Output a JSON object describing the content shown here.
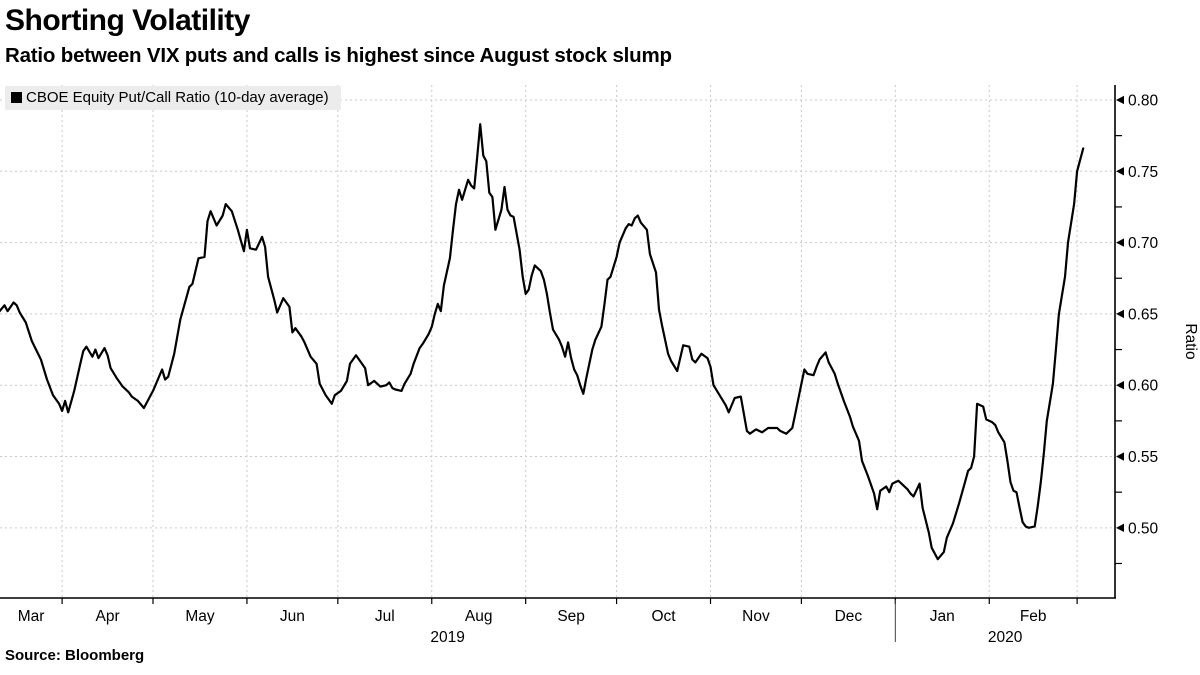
{
  "header": {
    "title": "Shorting Volatility",
    "subtitle": "Ratio between VIX puts and calls is highest since August stock slump"
  },
  "legend": {
    "label": "CBOE Equity Put/Call Ratio (10-day average)"
  },
  "footer": {
    "source": "Source: Bloomberg"
  },
  "colors": {
    "line": "#000000",
    "grid": "#c9c9c9",
    "legend_bg": "#ececec",
    "axis": "#000000",
    "background": "#ffffff"
  },
  "chart_data": {
    "type": "line",
    "title": "Shorting Volatility",
    "subtitle": "Ratio between VIX puts and calls is highest since August stock slump",
    "series_name": "CBOE Equity Put/Call Ratio (10-day average)",
    "ylabel": "Ratio",
    "grid": true,
    "legend_position": "top-left",
    "x_unit": "days since 2019-03-01",
    "x_domain": [
      10.5,
      378.5
    ],
    "ylim": [
      0.4508,
      0.8105
    ],
    "y_ticks_major": [
      0.5,
      0.55,
      0.6,
      0.65,
      0.7,
      0.75,
      0.8
    ],
    "y_ticks_minor": [
      0.475,
      0.525,
      0.575,
      0.625,
      0.675,
      0.725,
      0.775
    ],
    "y_tick_format": 2,
    "month_boundaries_days": [
      31,
      61,
      92,
      122,
      153,
      184,
      214,
      245,
      275,
      306,
      337,
      366
    ],
    "month_labels": [
      "Mar",
      "Apr",
      "May",
      "Jun",
      "Jul",
      "Aug",
      "Sep",
      "Oct",
      "Nov",
      "Dec",
      "Jan",
      "Feb"
    ],
    "year_divider_day": 306,
    "year_labels": [
      {
        "text": "2019",
        "from_day": 10.5,
        "to_day": 306
      },
      {
        "text": "2020",
        "from_day": 306,
        "to_day": 378.5
      }
    ],
    "points": [
      [
        10,
        0.651
      ],
      [
        12,
        0.656
      ],
      [
        13,
        0.652
      ],
      [
        15,
        0.658
      ],
      [
        16,
        0.656
      ],
      [
        17,
        0.651
      ],
      [
        19,
        0.644
      ],
      [
        21,
        0.631
      ],
      [
        24,
        0.618
      ],
      [
        26,
        0.604
      ],
      [
        28,
        0.593
      ],
      [
        30,
        0.587
      ],
      [
        31,
        0.582
      ],
      [
        32,
        0.589
      ],
      [
        33,
        0.581
      ],
      [
        35,
        0.596
      ],
      [
        37,
        0.615
      ],
      [
        38,
        0.624
      ],
      [
        39,
        0.627
      ],
      [
        41,
        0.62
      ],
      [
        42,
        0.625
      ],
      [
        43,
        0.619
      ],
      [
        45,
        0.626
      ],
      [
        46,
        0.621
      ],
      [
        47,
        0.612
      ],
      [
        49,
        0.605
      ],
      [
        51,
        0.599
      ],
      [
        53,
        0.595
      ],
      [
        54,
        0.592
      ],
      [
        56,
        0.589
      ],
      [
        58,
        0.584
      ],
      [
        61,
        0.596
      ],
      [
        64,
        0.611
      ],
      [
        65,
        0.604
      ],
      [
        66,
        0.606
      ],
      [
        68,
        0.622
      ],
      [
        70,
        0.646
      ],
      [
        73,
        0.669
      ],
      [
        74,
        0.671
      ],
      [
        76,
        0.689
      ],
      [
        78,
        0.69
      ],
      [
        79,
        0.715
      ],
      [
        80,
        0.722
      ],
      [
        82,
        0.712
      ],
      [
        84,
        0.719
      ],
      [
        85,
        0.727
      ],
      [
        87,
        0.722
      ],
      [
        89,
        0.709
      ],
      [
        91,
        0.694
      ],
      [
        92,
        0.709
      ],
      [
        93,
        0.696
      ],
      [
        95,
        0.695
      ],
      [
        97,
        0.704
      ],
      [
        98,
        0.697
      ],
      [
        99,
        0.676
      ],
      [
        101,
        0.66
      ],
      [
        102,
        0.651
      ],
      [
        104,
        0.661
      ],
      [
        106,
        0.655
      ],
      [
        107,
        0.637
      ],
      [
        108,
        0.64
      ],
      [
        110,
        0.634
      ],
      [
        111,
        0.63
      ],
      [
        113,
        0.62
      ],
      [
        115,
        0.615
      ],
      [
        116,
        0.601
      ],
      [
        118,
        0.593
      ],
      [
        120,
        0.587
      ],
      [
        121,
        0.593
      ],
      [
        123,
        0.596
      ],
      [
        125,
        0.603
      ],
      [
        126,
        0.615
      ],
      [
        128,
        0.621
      ],
      [
        131,
        0.612
      ],
      [
        132,
        0.6
      ],
      [
        134,
        0.603
      ],
      [
        136,
        0.599
      ],
      [
        138,
        0.6
      ],
      [
        139,
        0.602
      ],
      [
        140,
        0.598
      ],
      [
        141,
        0.597
      ],
      [
        143,
        0.596
      ],
      [
        144,
        0.601
      ],
      [
        146,
        0.608
      ],
      [
        147,
        0.615
      ],
      [
        149,
        0.626
      ],
      [
        150,
        0.629
      ],
      [
        152,
        0.636
      ],
      [
        153,
        0.641
      ],
      [
        154,
        0.65
      ],
      [
        155,
        0.657
      ],
      [
        156,
        0.652
      ],
      [
        157,
        0.67
      ],
      [
        159,
        0.689
      ],
      [
        160,
        0.709
      ],
      [
        161,
        0.727
      ],
      [
        162,
        0.737
      ],
      [
        163,
        0.73
      ],
      [
        165,
        0.744
      ],
      [
        166,
        0.74
      ],
      [
        167,
        0.738
      ],
      [
        168,
        0.76
      ],
      [
        169,
        0.783
      ],
      [
        170,
        0.761
      ],
      [
        171,
        0.757
      ],
      [
        172,
        0.735
      ],
      [
        173,
        0.732
      ],
      [
        174,
        0.709
      ],
      [
        176,
        0.723
      ],
      [
        177,
        0.739
      ],
      [
        178,
        0.723
      ],
      [
        179,
        0.719
      ],
      [
        180,
        0.718
      ],
      [
        182,
        0.695
      ],
      [
        183,
        0.676
      ],
      [
        184,
        0.664
      ],
      [
        185,
        0.667
      ],
      [
        186,
        0.677
      ],
      [
        187,
        0.684
      ],
      [
        188,
        0.682
      ],
      [
        189,
        0.68
      ],
      [
        190,
        0.674
      ],
      [
        191,
        0.664
      ],
      [
        192,
        0.651
      ],
      [
        193,
        0.639
      ],
      [
        195,
        0.632
      ],
      [
        196,
        0.627
      ],
      [
        197,
        0.62
      ],
      [
        198,
        0.63
      ],
      [
        199,
        0.619
      ],
      [
        200,
        0.611
      ],
      [
        201,
        0.607
      ],
      [
        202,
        0.6
      ],
      [
        203,
        0.594
      ],
      [
        204,
        0.605
      ],
      [
        205,
        0.615
      ],
      [
        206,
        0.625
      ],
      [
        207,
        0.632
      ],
      [
        209,
        0.641
      ],
      [
        210,
        0.657
      ],
      [
        211,
        0.674
      ],
      [
        212,
        0.676
      ],
      [
        214,
        0.69
      ],
      [
        215,
        0.7
      ],
      [
        217,
        0.71
      ],
      [
        218,
        0.713
      ],
      [
        219,
        0.712
      ],
      [
        220,
        0.717
      ],
      [
        221,
        0.719
      ],
      [
        222,
        0.714
      ],
      [
        224,
        0.709
      ],
      [
        225,
        0.692
      ],
      [
        227,
        0.679
      ],
      [
        228,
        0.653
      ],
      [
        229,
        0.642
      ],
      [
        231,
        0.622
      ],
      [
        232,
        0.617
      ],
      [
        234,
        0.61
      ],
      [
        236,
        0.628
      ],
      [
        238,
        0.627
      ],
      [
        239,
        0.618
      ],
      [
        240,
        0.616
      ],
      [
        242,
        0.622
      ],
      [
        244,
        0.619
      ],
      [
        245,
        0.613
      ],
      [
        246,
        0.6
      ],
      [
        250,
        0.586
      ],
      [
        251,
        0.581
      ],
      [
        253,
        0.591
      ],
      [
        255,
        0.592
      ],
      [
        257,
        0.568
      ],
      [
        258,
        0.566
      ],
      [
        260,
        0.569
      ],
      [
        262,
        0.567
      ],
      [
        264,
        0.57
      ],
      [
        267,
        0.57
      ],
      [
        268,
        0.568
      ],
      [
        270,
        0.566
      ],
      [
        272,
        0.57
      ],
      [
        273,
        0.58
      ],
      [
        275,
        0.601
      ],
      [
        276,
        0.611
      ],
      [
        277,
        0.608
      ],
      [
        279,
        0.607
      ],
      [
        280,
        0.613
      ],
      [
        281,
        0.618
      ],
      [
        283,
        0.623
      ],
      [
        284,
        0.616
      ],
      [
        286,
        0.608
      ],
      [
        287,
        0.601
      ],
      [
        289,
        0.589
      ],
      [
        291,
        0.578
      ],
      [
        292,
        0.571
      ],
      [
        294,
        0.561
      ],
      [
        295,
        0.547
      ],
      [
        297,
        0.536
      ],
      [
        299,
        0.524
      ],
      [
        300,
        0.513
      ],
      [
        301,
        0.526
      ],
      [
        303,
        0.529
      ],
      [
        304,
        0.525
      ],
      [
        305,
        0.531
      ],
      [
        307,
        0.533
      ],
      [
        308,
        0.531
      ],
      [
        310,
        0.527
      ],
      [
        311,
        0.524
      ],
      [
        312,
        0.522
      ],
      [
        314,
        0.531
      ],
      [
        315,
        0.514
      ],
      [
        317,
        0.497
      ],
      [
        318,
        0.486
      ],
      [
        320,
        0.478
      ],
      [
        322,
        0.483
      ],
      [
        323,
        0.493
      ],
      [
        325,
        0.503
      ],
      [
        327,
        0.517
      ],
      [
        329,
        0.532
      ],
      [
        330,
        0.54
      ],
      [
        331,
        0.542
      ],
      [
        332,
        0.55
      ],
      [
        333,
        0.587
      ],
      [
        335,
        0.585
      ],
      [
        336,
        0.576
      ],
      [
        338,
        0.574
      ],
      [
        339,
        0.572
      ],
      [
        340,
        0.567
      ],
      [
        342,
        0.56
      ],
      [
        343,
        0.547
      ],
      [
        344,
        0.532
      ],
      [
        345,
        0.526
      ],
      [
        346,
        0.525
      ],
      [
        347,
        0.514
      ],
      [
        348,
        0.504
      ],
      [
        349,
        0.501
      ],
      [
        350,
        0.5
      ],
      [
        352,
        0.501
      ],
      [
        353,
        0.515
      ],
      [
        354,
        0.532
      ],
      [
        355,
        0.552
      ],
      [
        356,
        0.575
      ],
      [
        358,
        0.601
      ],
      [
        359,
        0.625
      ],
      [
        360,
        0.65
      ],
      [
        362,
        0.676
      ],
      [
        363,
        0.7
      ],
      [
        365,
        0.727
      ],
      [
        366,
        0.75
      ],
      [
        368,
        0.766
      ]
    ]
  }
}
